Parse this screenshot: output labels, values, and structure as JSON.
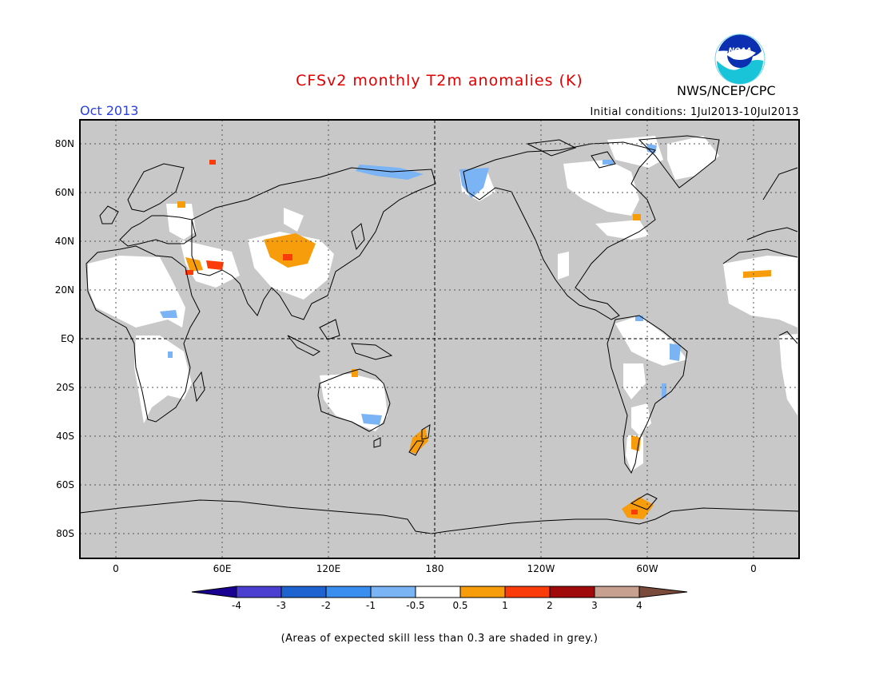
{
  "header": {
    "title": "CFSv2 monthly T2m anomalies (K)",
    "org": "NWS/NCEP/CPC",
    "month": "Oct 2013",
    "initial_conditions": "Initial conditions: 1Jul2013-10Jul2013",
    "logo_text": "NOAA"
  },
  "map": {
    "lat_labels": [
      "80N",
      "60N",
      "40N",
      "20N",
      "EQ",
      "20S",
      "40S",
      "60S",
      "80S"
    ],
    "lon_labels": [
      "0",
      "60E",
      "120E",
      "180",
      "120W",
      "60W",
      "0"
    ],
    "background_color": "#c8c8c8",
    "skill_mask_color": "#ffffff"
  },
  "colorbar": {
    "tick_labels": [
      "-4",
      "-3",
      "-2",
      "-1",
      "-0.5",
      "0.5",
      "1",
      "2",
      "3",
      "4"
    ],
    "colors": [
      "#1a0090",
      "#4a3fd0",
      "#1e63d0",
      "#3a8ef0",
      "#7ab4f4",
      "#ffffff",
      "#f79c0a",
      "#fa3c0a",
      "#a00a0a",
      "#c8a090",
      "#7a4a3a"
    ]
  },
  "footnote": "(Areas of expected skill less than 0.3 are shaded in grey.)",
  "colors": {
    "title": "#e00000",
    "month": "#2a40e0",
    "text": "#000000"
  }
}
